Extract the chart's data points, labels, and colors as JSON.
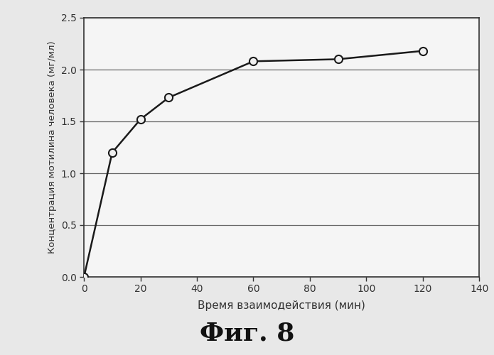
{
  "x": [
    0,
    10,
    20,
    30,
    60,
    90,
    120
  ],
  "y": [
    0.0,
    1.2,
    1.52,
    1.73,
    2.08,
    2.1,
    2.18
  ],
  "xlabel": "Время взаимодействия (мин)",
  "ylabel": "Концентрация мотилина человека (мг/мл)",
  "title": "Фиг. 8",
  "xlim": [
    0,
    140
  ],
  "ylim": [
    0,
    2.5
  ],
  "xticks": [
    0,
    20,
    40,
    60,
    80,
    100,
    120,
    140
  ],
  "yticks": [
    0,
    0.5,
    1.0,
    1.5,
    2.0,
    2.5
  ],
  "line_color": "#1a1a1a",
  "marker_facecolor": "#f0f0f0",
  "marker_edgecolor": "#1a1a1a",
  "background_color": "#e8e8e8",
  "plot_bg_color": "#f5f5f5",
  "grid_color": "#666666",
  "spine_color": "#333333"
}
